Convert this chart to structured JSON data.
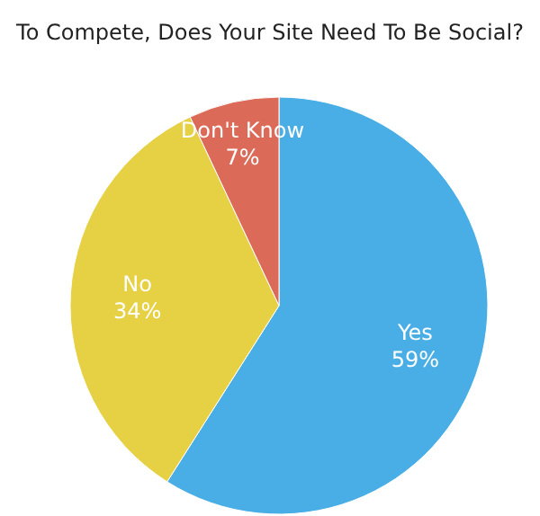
{
  "chart_data": {
    "type": "pie",
    "title": "To Compete, Does Your Site Need To Be Social?",
    "categories": [
      "Yes",
      "No",
      "Don't Know"
    ],
    "values": [
      59,
      34,
      7
    ],
    "colors": [
      "#4aaee6",
      "#e6d044",
      "#dc6a58"
    ],
    "value_labels": [
      "59%",
      "34%",
      "7%"
    ]
  }
}
